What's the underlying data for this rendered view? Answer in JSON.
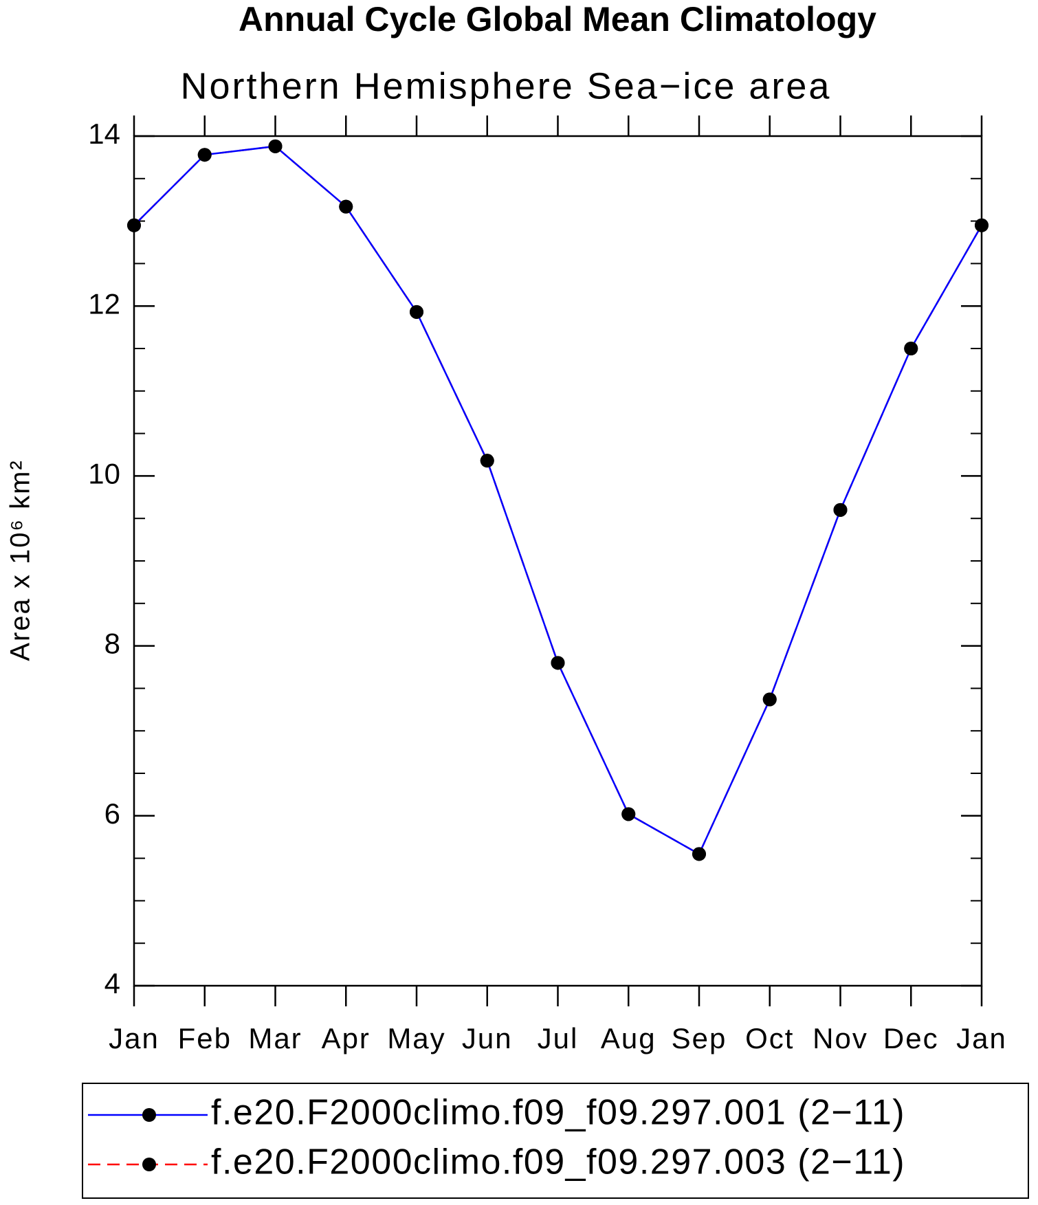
{
  "chart_data": {
    "type": "line",
    "title": "Annual Cycle Global Mean Climatology",
    "subtitle": "Northern Hemisphere Sea−ice area",
    "y_label": "Area x 10⁶ km²",
    "categories": [
      "Jan",
      "Feb",
      "Mar",
      "Apr",
      "May",
      "Jun",
      "Jul",
      "Aug",
      "Sep",
      "Oct",
      "Nov",
      "Dec",
      "Jan"
    ],
    "series": [
      {
        "name": "f.e20.F2000climo.f09_f09.297.001 (2−11)",
        "color": "#0000ff",
        "dash": "solid",
        "values": [
          12.95,
          13.78,
          13.88,
          13.17,
          11.93,
          10.18,
          7.8,
          6.02,
          5.55,
          7.37,
          9.6,
          11.5,
          12.95
        ]
      },
      {
        "name": "f.e20.F2000climo.f09_f09.297.003 (2−11)",
        "color": "#ff0000",
        "dash": "dashed",
        "values": [
          12.95,
          13.78,
          13.88,
          13.17,
          11.93,
          10.18,
          7.8,
          6.02,
          5.55,
          7.37,
          9.6,
          11.5,
          12.95
        ]
      }
    ],
    "marker_color": "#000000",
    "ylim": [
      4,
      14
    ],
    "yticks": [
      4,
      6,
      8,
      10,
      12,
      14
    ]
  }
}
